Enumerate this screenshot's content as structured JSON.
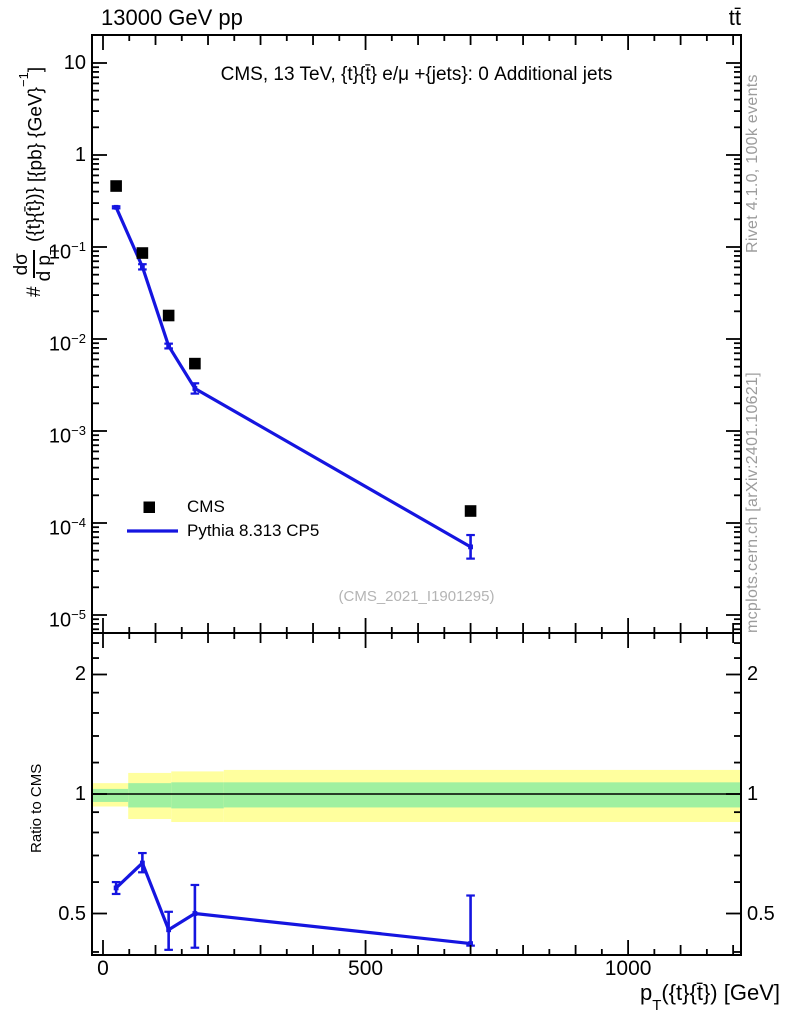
{
  "header": {
    "left": "13000 GeV pp",
    "right": "tt̄"
  },
  "side_notes": {
    "top": "Rivet 4.1.0,  100k events",
    "bottom": "mcplots.cern.ch [arXiv:2401.10621]"
  },
  "watermark": "(CMS_2021_I1901295)",
  "chart_data": {
    "type": "line",
    "subtype": "data-vs-mc with ratio panel, log y axes",
    "title": "CMS, 13 TeV, {t}{t̄} e/μ +{jets}: 0 Additional jets",
    "xlabel": "p_T({t}{t̄}) [GeV]",
    "xlabel_parts": {
      "pre": "p",
      "sub": "T",
      "post": "({t}{t̄}) [GeV]"
    },
    "ylabel": "# dσ/d p_T({t}{t̄})} [{pb} {GeV}^-1]",
    "ylabel_parts": {
      "hash": "#",
      "num": "dσ",
      "den_pre": "d p",
      "den_sub": "T",
      "after_frac": "({t}{t̄})}",
      "units_pre": "[{pb} {GeV}",
      "units_sup": "−1",
      "units_post": "]"
    },
    "ratio_ylabel": "Ratio to CMS",
    "xlim": [
      -20,
      1215
    ],
    "ylim_main": [
      6.3e-06,
      20
    ],
    "ylim_ratio": [
      0.39,
      2.54
    ],
    "grid": false,
    "legend_position": "inside-left",
    "x_ticks": [
      {
        "v": 0,
        "label": "0"
      },
      {
        "v": 500,
        "label": "500"
      },
      {
        "v": 1000,
        "label": "1000"
      }
    ],
    "x_minor_step": 50,
    "x_mid_step": 100,
    "y_main_ticks": [
      {
        "v": 10,
        "base": "10",
        "sup": ""
      },
      {
        "v": 1,
        "base": "1",
        "sup": ""
      },
      {
        "v": 0.1,
        "base": "10",
        "sup": "−1"
      },
      {
        "v": 0.01,
        "base": "10",
        "sup": "−2"
      },
      {
        "v": 0.001,
        "base": "10",
        "sup": "−3"
      },
      {
        "v": 0.0001,
        "base": "10",
        "sup": "−4"
      },
      {
        "v": 1e-05,
        "base": "10",
        "sup": "−5"
      }
    ],
    "y_ratio_ticks": [
      {
        "v": 2,
        "label": "2"
      },
      {
        "v": 1,
        "label": "1"
      },
      {
        "v": 0.5,
        "label": "0.5"
      }
    ],
    "y_ratio_minor_ticks": [
      0.4,
      0.6,
      0.7,
      0.8,
      0.9,
      1.2,
      1.4,
      1.6,
      1.8,
      2.2,
      2.4
    ],
    "series": [
      {
        "name": "CMS",
        "type": "scatter",
        "marker": "square",
        "color": "#000000",
        "x": [
          25,
          75,
          125,
          175,
          700
        ],
        "y": [
          0.46,
          0.086,
          0.018,
          0.0054,
          0.000135
        ]
      },
      {
        "name": "Pythia 8.313 CP5",
        "type": "line",
        "color": "#1515e0",
        "x": [
          25,
          75,
          125,
          175,
          700
        ],
        "y": [
          0.27,
          0.061,
          0.0084,
          0.0029,
          5.5e-05
        ],
        "y_err_lo": [
          0.263,
          0.057,
          0.0079,
          0.00255,
          4.1e-05
        ],
        "y_err_hi": [
          0.277,
          0.065,
          0.0089,
          0.0033,
          7.4e-05
        ]
      }
    ],
    "ratio": {
      "reference": "CMS",
      "x": [
        25,
        75,
        125,
        175,
        700
      ],
      "y": [
        0.58,
        0.67,
        0.455,
        0.5,
        0.42
      ],
      "y_err_lo": [
        0.56,
        0.635,
        0.405,
        0.41,
        0.415
      ],
      "y_err_hi": [
        0.6,
        0.71,
        0.505,
        0.59,
        0.555
      ],
      "one_line": 1.0,
      "bands": [
        {
          "x0": -20,
          "x1": 48,
          "yellow": [
            0.93,
            1.065
          ],
          "green": [
            0.955,
            1.03
          ]
        },
        {
          "x0": 48,
          "x1": 130,
          "yellow": [
            0.865,
            1.13
          ],
          "green": [
            0.925,
            1.065
          ]
        },
        {
          "x0": 130,
          "x1": 230,
          "yellow": [
            0.85,
            1.14
          ],
          "green": [
            0.92,
            1.07
          ]
        },
        {
          "x0": 230,
          "x1": 1215,
          "yellow": [
            0.85,
            1.15
          ],
          "green": [
            0.925,
            1.07
          ]
        }
      ]
    },
    "colors": {
      "mc_line": "#1515e0",
      "data_marker": "#000000",
      "band_yellow": "#ffff9e",
      "band_green": "#a0f0a0",
      "frame": "#000000",
      "side_note_gray": "#9c9c9c",
      "watermark_gray": "#b4b4b4"
    }
  }
}
